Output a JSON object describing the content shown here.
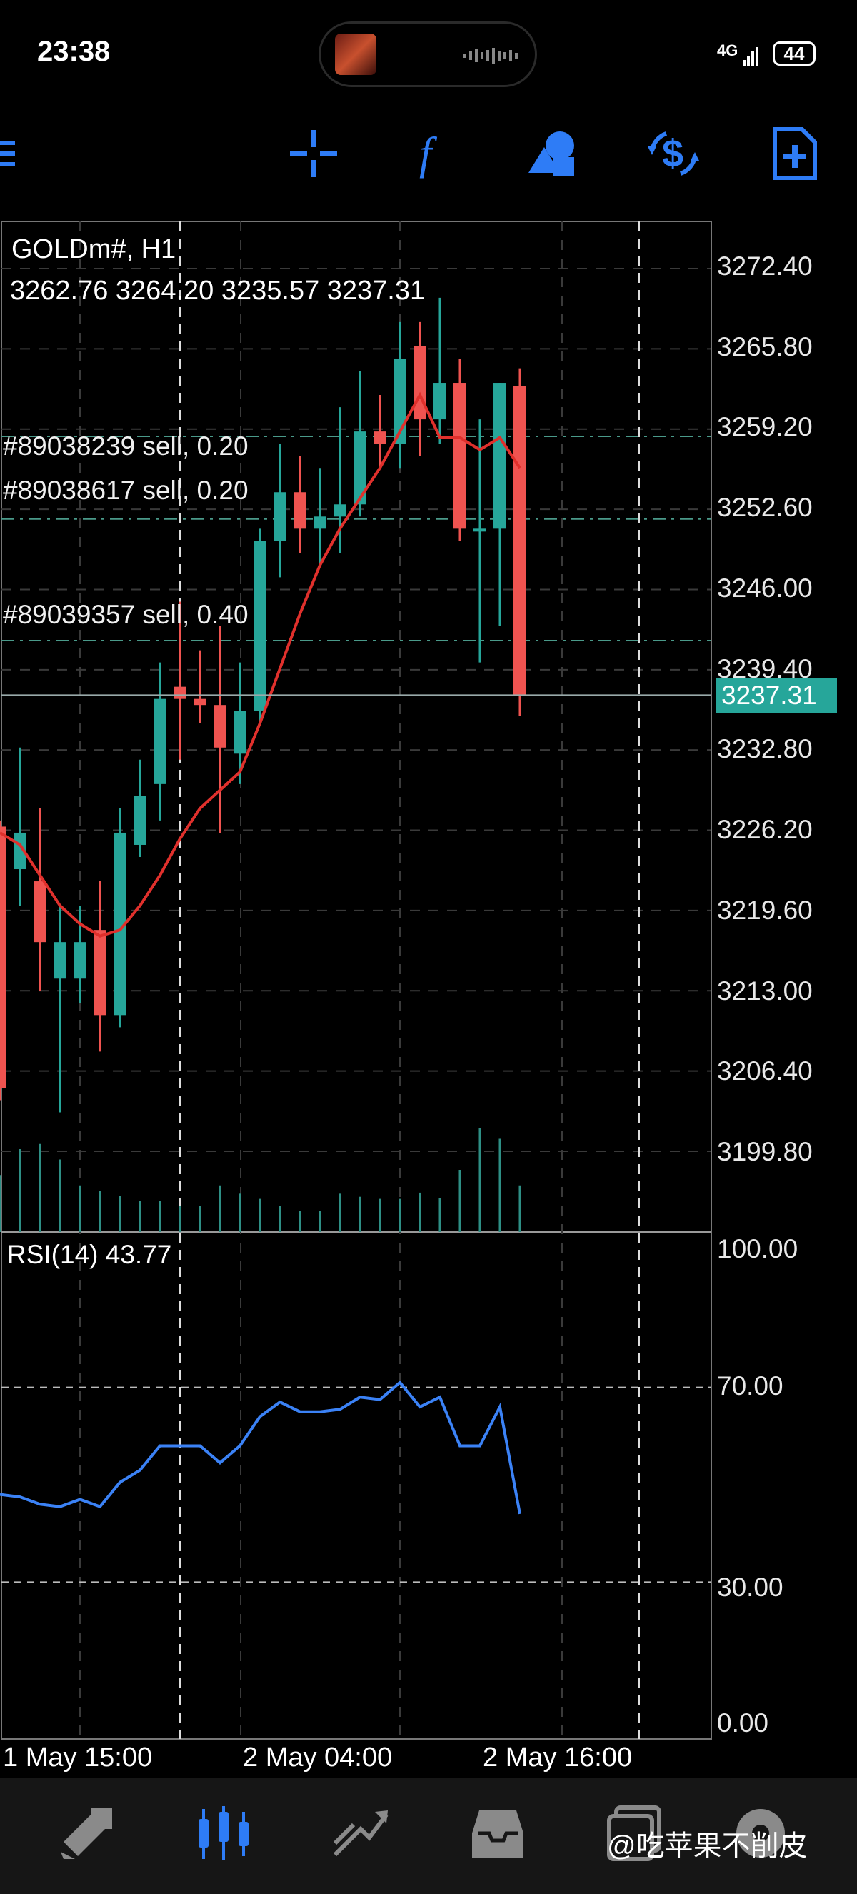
{
  "status_bar": {
    "time": "23:38",
    "network": "4G",
    "battery": "44"
  },
  "toolbar": {
    "icons": [
      "menu-icon",
      "crosshair-icon",
      "indicator-function-icon",
      "objects-icon",
      "trade-dollar-icon",
      "new-order-icon"
    ],
    "accent_color": "#2e7cf6"
  },
  "chart": {
    "symbol": "GOLDm#, H1",
    "ohlc": "3262.76 3264.20 3235.57 3237.31",
    "current_price": "3237.31",
    "price_axis": [
      "3272.40",
      "3265.80",
      "3259.20",
      "3252.60",
      "3246.00",
      "3239.40",
      "3232.80",
      "3226.20",
      "3219.60",
      "3213.00",
      "3206.40",
      "3199.80"
    ],
    "orders": [
      {
        "label": "#89038239 sell, 0.20"
      },
      {
        "label": "#89038617 sell, 0.20"
      },
      {
        "label": "#89039357 sell, 0.40"
      }
    ],
    "time_axis": [
      "1 May 15:00",
      "2 May 04:00",
      "2 May 16:00"
    ],
    "colors": {
      "bull": "#26a69a",
      "bear": "#ef5350",
      "ma": "#e0302c",
      "rsi": "#3b82f6"
    }
  },
  "rsi": {
    "label": "RSI(14) 43.77",
    "levels": [
      "100.00",
      "70.00",
      "30.00",
      "0.00"
    ]
  },
  "chart_data": {
    "type": "candlestick",
    "title": "GOLDm#, H1",
    "ylim": [
      3195.0,
      3276.0
    ],
    "candles": [
      {
        "o": 3226.5,
        "h": 3227.0,
        "l": 3204.0,
        "c": 3205.0
      },
      {
        "o": 3223.0,
        "h": 3233.0,
        "l": 3220.0,
        "c": 3226.0
      },
      {
        "o": 3222.0,
        "h": 3228.0,
        "l": 3213.0,
        "c": 3217.0
      },
      {
        "o": 3214.0,
        "h": 3220.0,
        "l": 3203.0,
        "c": 3217.0
      },
      {
        "o": 3214.0,
        "h": 3220.0,
        "l": 3212.0,
        "c": 3217.0
      },
      {
        "o": 3218.0,
        "h": 3222.0,
        "l": 3208.0,
        "c": 3211.0
      },
      {
        "o": 3211.0,
        "h": 3228.0,
        "l": 3210.0,
        "c": 3226.0
      },
      {
        "o": 3225.0,
        "h": 3232.0,
        "l": 3224.0,
        "c": 3229.0
      },
      {
        "o": 3230.0,
        "h": 3240.0,
        "l": 3227.0,
        "c": 3237.0
      },
      {
        "o": 3238.0,
        "h": 3245.0,
        "l": 3232.0,
        "c": 3237.0
      },
      {
        "o": 3237.0,
        "h": 3241.0,
        "l": 3235.0,
        "c": 3236.5
      },
      {
        "o": 3236.5,
        "h": 3243.0,
        "l": 3226.0,
        "c": 3233.0
      },
      {
        "o": 3232.5,
        "h": 3240.0,
        "l": 3230.0,
        "c": 3236.0
      },
      {
        "o": 3236.0,
        "h": 3251.0,
        "l": 3235.0,
        "c": 3250.0
      },
      {
        "o": 3250.0,
        "h": 3258.0,
        "l": 3247.0,
        "c": 3254.0
      },
      {
        "o": 3254.0,
        "h": 3257.0,
        "l": 3249.0,
        "c": 3251.0
      },
      {
        "o": 3251.0,
        "h": 3256.0,
        "l": 3248.0,
        "c": 3252.0
      },
      {
        "o": 3252.0,
        "h": 3261.0,
        "l": 3249.0,
        "c": 3253.0
      },
      {
        "o": 3253.0,
        "h": 3264.0,
        "l": 3252.0,
        "c": 3259.0
      },
      {
        "o": 3259.0,
        "h": 3262.0,
        "l": 3256.0,
        "c": 3258.0
      },
      {
        "o": 3258.0,
        "h": 3268.0,
        "l": 3256.0,
        "c": 3265.0
      },
      {
        "o": 3266.0,
        "h": 3268.0,
        "l": 3257.0,
        "c": 3260.0
      },
      {
        "o": 3260.0,
        "h": 3270.0,
        "l": 3258.0,
        "c": 3263.0
      },
      {
        "o": 3263.0,
        "h": 3265.0,
        "l": 3250.0,
        "c": 3251.0
      },
      {
        "o": 3251.0,
        "h": 3260.0,
        "l": 3240.0,
        "c": 3251.0
      },
      {
        "o": 3251.0,
        "h": 3263.0,
        "l": 3243.0,
        "c": 3263.0
      },
      {
        "o": 3262.76,
        "h": 3264.2,
        "l": 3235.57,
        "c": 3237.31
      }
    ],
    "ma": [
      3226.0,
      3225.0,
      3222.5,
      3220.0,
      3218.5,
      3217.5,
      3218.0,
      3220.0,
      3222.5,
      3225.5,
      3228.0,
      3229.5,
      3231.0,
      3235.0,
      3239.5,
      3244.0,
      3248.0,
      3251.0,
      3253.5,
      3256.0,
      3259.0,
      3262.0,
      3258.5,
      3258.5,
      3257.5,
      3258.5,
      3256.0
    ],
    "volume": [
      55,
      80,
      85,
      70,
      45,
      40,
      35,
      30,
      30,
      25,
      25,
      45,
      37,
      32,
      25,
      20,
      20,
      37,
      34,
      32,
      32,
      38,
      33,
      60,
      100,
      90,
      45
    ],
    "rsi": [
      48,
      47.5,
      46,
      45.5,
      47,
      45.5,
      50.5,
      53,
      58,
      58,
      58,
      54.5,
      58,
      64,
      67,
      65,
      65,
      65.5,
      68,
      67.5,
      71,
      66,
      68,
      58,
      58,
      66,
      44
    ],
    "rsi_ylim": [
      0,
      100
    ],
    "rsi_levels": [
      70,
      30
    ]
  },
  "bottom_nav": {
    "icons": [
      "quotes-icon",
      "chart-icon",
      "trade-icon",
      "history-icon",
      "messages-icon",
      "settings-icon"
    ],
    "active": "chart-icon"
  },
  "watermark": "@吃苹果不削皮"
}
